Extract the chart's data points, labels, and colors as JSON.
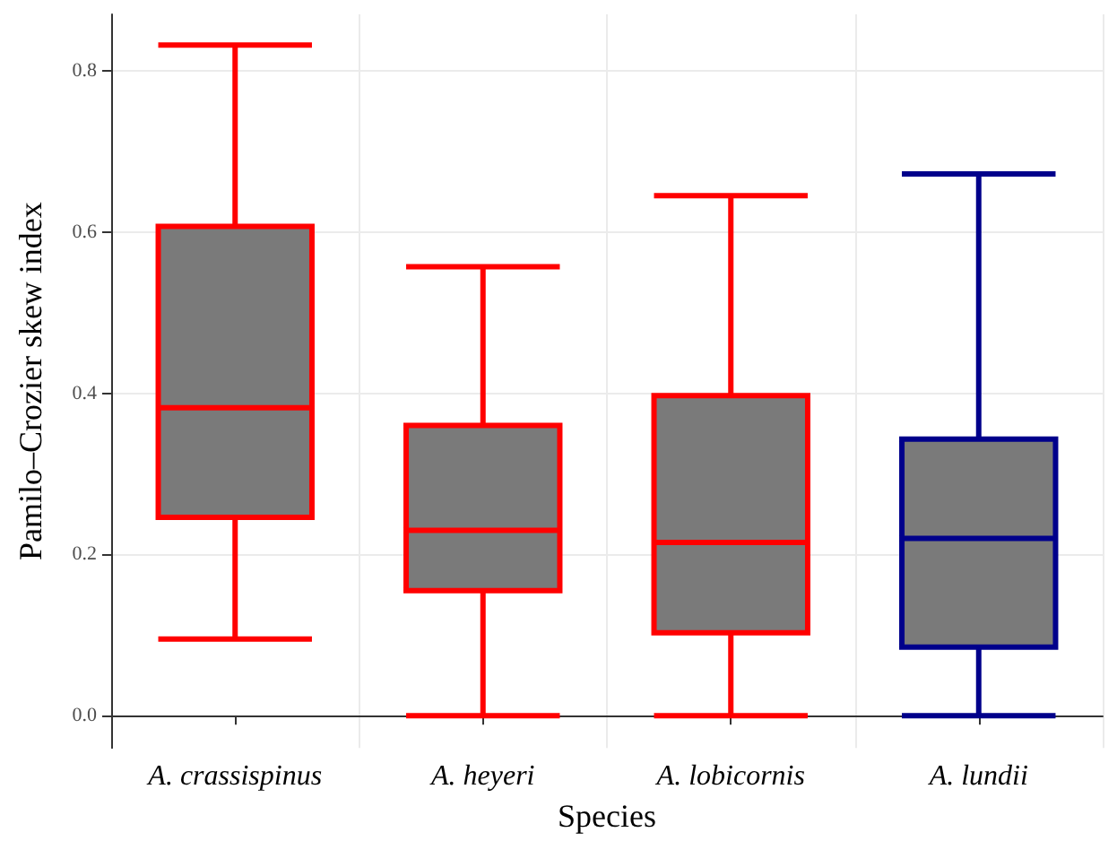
{
  "chart_data": {
    "type": "box",
    "xlabel": "Species",
    "ylabel": "Pamilo–Crozier skew index",
    "categories": [
      "A. crassispinus",
      "A. heyeri",
      "A. lobicornis",
      "A. lundii"
    ],
    "series": [
      {
        "color": "#7a7a7a",
        "colors": [
          "#ff0000",
          "#ff0000",
          "#ff0000",
          "#00008b"
        ],
        "boxes": [
          {
            "low": 0.095,
            "q1": 0.246,
            "median": 0.382,
            "q3": 0.607,
            "high": 0.832
          },
          {
            "low": 0,
            "q1": 0.155,
            "median": 0.23,
            "q3": 0.36,
            "high": 0.557
          },
          {
            "low": 0,
            "q1": 0.103,
            "median": 0.215,
            "q3": 0.397,
            "high": 0.645
          },
          {
            "low": 0,
            "q1": 0.085,
            "median": 0.22,
            "q3": 0.343,
            "high": 0.672
          }
        ]
      }
    ],
    "ylim": [
      -0.04,
      0.87
    ],
    "yticks": [
      {
        "value": 0,
        "label": "0.0"
      },
      0.2,
      0.4,
      0.6,
      0.8
    ],
    "grid": true
  }
}
